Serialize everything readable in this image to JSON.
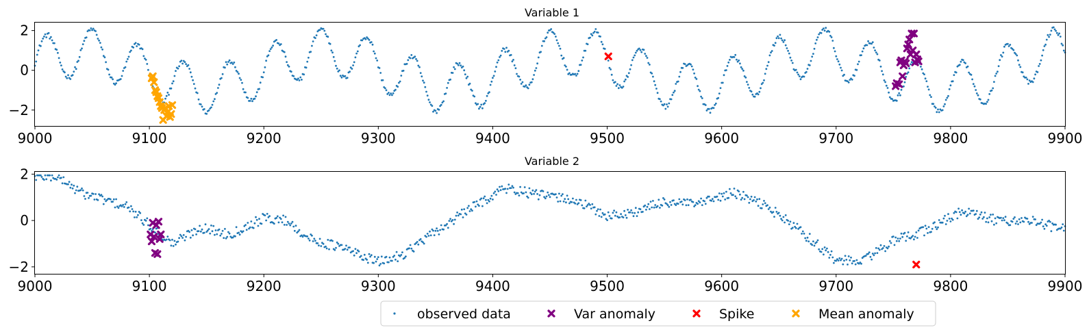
{
  "chart_data": [
    {
      "type": "scatter",
      "title": "Variable 1",
      "xlabel": "",
      "ylabel": "",
      "xlim": [
        9000,
        9900
      ],
      "ylim": [
        -2.8,
        2.4
      ],
      "xticks": [
        9000,
        9100,
        9200,
        9300,
        9400,
        9500,
        9600,
        9700,
        9800,
        9900
      ],
      "yticks": [
        -2,
        0,
        2
      ],
      "grid": false,
      "observed_model": {
        "range": [
          9000,
          9900
        ],
        "clip": [
          -2.2,
          2.2
        ],
        "components": [
          {
            "amp": 1.2,
            "period": 40,
            "phase": 0
          },
          {
            "amp": 0.9,
            "period": 215,
            "phase": 0.4
          }
        ]
      },
      "series": [
        {
          "name": "Var anomaly",
          "points": [
            [
              9752,
              -0.8
            ],
            [
              9753,
              -0.65
            ],
            [
              9755,
              -0.7
            ],
            [
              9756,
              0.4
            ],
            [
              9757,
              0.5
            ],
            [
              9758,
              -0.3
            ],
            [
              9759,
              0.25
            ],
            [
              9760,
              0.45
            ],
            [
              9761,
              0.35
            ],
            [
              9762,
              1.1
            ],
            [
              9763,
              1.3
            ],
            [
              9764,
              1.55
            ],
            [
              9765,
              0.8
            ],
            [
              9766,
              1.85
            ],
            [
              9767,
              1.0
            ],
            [
              9768,
              1.85
            ],
            [
              9769,
              0.4
            ],
            [
              9770,
              0.8
            ],
            [
              9771,
              0.55
            ],
            [
              9772,
              0.45
            ]
          ]
        },
        {
          "name": "Spike",
          "points": [
            [
              9501,
              0.7
            ]
          ]
        },
        {
          "name": "Mean anomaly",
          "points": [
            [
              9102,
              -0.4
            ],
            [
              9103,
              -0.3
            ],
            [
              9104,
              -0.6
            ],
            [
              9105,
              -1.0
            ],
            [
              9106,
              -1.1
            ],
            [
              9107,
              -1.3
            ],
            [
              9108,
              -1.4
            ],
            [
              9109,
              -1.6
            ],
            [
              9110,
              -1.8
            ],
            [
              9111,
              -1.9
            ],
            [
              9112,
              -2.5
            ],
            [
              9113,
              -2.0
            ],
            [
              9114,
              -1.9
            ],
            [
              9115,
              -2.3
            ],
            [
              9116,
              -2.1
            ],
            [
              9117,
              -1.8
            ],
            [
              9118,
              -2.35
            ],
            [
              9119,
              -2.2
            ],
            [
              9120,
              -1.75
            ]
          ]
        }
      ]
    },
    {
      "type": "scatter",
      "title": "Variable 2",
      "xlabel": "",
      "ylabel": "",
      "xlim": [
        9000,
        9900
      ],
      "ylim": [
        -2.3,
        2.1
      ],
      "xticks": [
        9000,
        9100,
        9200,
        9300,
        9400,
        9500,
        9600,
        9700,
        9800,
        9900
      ],
      "yticks": [
        -2,
        0,
        2
      ],
      "grid": false,
      "observed_model": {
        "range": [
          9000,
          9900
        ],
        "clip": [
          -2.2,
          1.95
        ],
        "trend": [
          [
            9000,
            1.9
          ],
          [
            9020,
            1.9
          ],
          [
            9040,
            1.2
          ],
          [
            9080,
            0.6
          ],
          [
            9100,
            -0.2
          ],
          [
            9120,
            -1.0
          ],
          [
            9145,
            -0.3
          ],
          [
            9170,
            -0.6
          ],
          [
            9200,
            0.1
          ],
          [
            9220,
            0.0
          ],
          [
            9240,
            -0.8
          ],
          [
            9270,
            -1.2
          ],
          [
            9300,
            -1.8
          ],
          [
            9320,
            -1.5
          ],
          [
            9350,
            -0.5
          ],
          [
            9380,
            0.5
          ],
          [
            9410,
            1.4
          ],
          [
            9440,
            1.1
          ],
          [
            9470,
            0.9
          ],
          [
            9500,
            0.2
          ],
          [
            9520,
            0.3
          ],
          [
            9550,
            0.8
          ],
          [
            9580,
            0.7
          ],
          [
            9610,
            1.2
          ],
          [
            9640,
            0.6
          ],
          [
            9670,
            -0.5
          ],
          [
            9700,
            -1.7
          ],
          [
            9720,
            -1.8
          ],
          [
            9750,
            -0.9
          ],
          [
            9780,
            -0.4
          ],
          [
            9810,
            0.4
          ],
          [
            9840,
            0.0
          ],
          [
            9870,
            0.0
          ],
          [
            9900,
            -0.4
          ]
        ],
        "noise": 0.22
      },
      "series": [
        {
          "name": "Var anomaly",
          "points": [
            [
              9101,
              -0.6
            ],
            [
              9102,
              -0.9
            ],
            [
              9103,
              -0.1
            ],
            [
              9104,
              -0.7
            ],
            [
              9105,
              -1.4
            ],
            [
              9106,
              -0.2
            ],
            [
              9107,
              -1.45
            ],
            [
              9108,
              -0.05
            ],
            [
              9109,
              -0.8
            ],
            [
              9110,
              -0.6
            ]
          ]
        },
        {
          "name": "Spike",
          "points": [
            [
              9770,
              -1.9
            ]
          ]
        }
      ]
    }
  ],
  "legend": {
    "placement": "bottom-center",
    "entries": [
      {
        "name": "observed data",
        "color": "#1f77b4",
        "marker": "dot"
      },
      {
        "name": "Var anomaly",
        "color": "#800080",
        "marker": "x"
      },
      {
        "name": "Spike",
        "color": "#ff0000",
        "marker": "x"
      },
      {
        "name": "Mean anomaly",
        "color": "#ffa500",
        "marker": "x"
      }
    ]
  },
  "colors": {
    "observed": "#1f77b4",
    "var_anomaly": "#800080",
    "spike": "#ff0000",
    "mean_anomaly": "#ffa500"
  }
}
